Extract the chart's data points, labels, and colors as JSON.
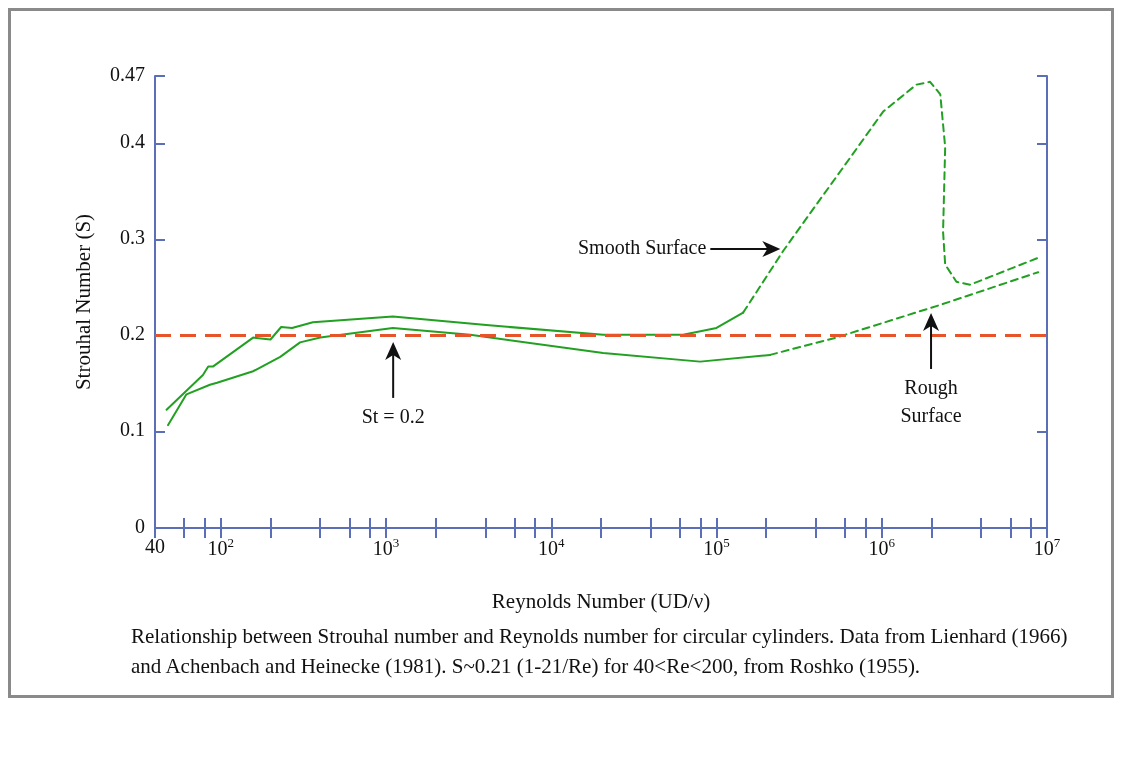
{
  "chart_data": {
    "type": "line",
    "xlabel": "Reynolds Number (UD/ν)",
    "ylabel": "Strouhal Number (S)",
    "log": "x",
    "marker": "none",
    "grid": false,
    "xlim": [
      40,
      10000000
    ],
    "ylim": [
      0,
      0.47
    ],
    "xticks": [
      {
        "value": 40,
        "label": "40"
      },
      {
        "value": 60,
        "label": null
      },
      {
        "value": 80,
        "label": null
      },
      {
        "value": 100,
        "label": "10$^{2}$"
      },
      {
        "value": 200,
        "label": null
      },
      {
        "value": 400,
        "label": null
      },
      {
        "value": 600,
        "label": null
      },
      {
        "value": 800,
        "label": null
      },
      {
        "value": 1000,
        "label": "10$^{3}$"
      },
      {
        "value": 2000,
        "label": null
      },
      {
        "value": 4000,
        "label": null
      },
      {
        "value": 6000,
        "label": null
      },
      {
        "value": 8000,
        "label": null
      },
      {
        "value": 10000,
        "label": "10$^{4}$"
      },
      {
        "value": 20000,
        "label": null
      },
      {
        "value": 40000,
        "label": null
      },
      {
        "value": 60000,
        "label": null
      },
      {
        "value": 80000,
        "label": null
      },
      {
        "value": 100000,
        "label": "10$^{5}$"
      },
      {
        "value": 200000,
        "label": null
      },
      {
        "value": 400000,
        "label": null
      },
      {
        "value": 600000,
        "label": null
      },
      {
        "value": 800000,
        "label": null
      },
      {
        "value": 1000000,
        "label": "10$^{6}$"
      },
      {
        "value": 2000000,
        "label": null
      },
      {
        "value": 4000000,
        "label": null
      },
      {
        "value": 6000000,
        "label": null
      },
      {
        "value": 8000000,
        "label": null
      },
      {
        "value": 10000000,
        "label": "10$^{7}$"
      }
    ],
    "yticks": [
      0,
      0.1,
      0.2,
      0.3,
      0.4,
      0.47
    ],
    "series": [
      {
        "color": "#22a022",
        "line_style": "solid",
        "x": [
          47,
          78,
          84,
          90,
          157,
          200,
          232,
          270,
          361,
          1100,
          4040,
          20600,
          62800,
          100000,
          145000
        ],
        "values": [
          0.123,
          0.159,
          0.168,
          0.168,
          0.198,
          0.196,
          0.209,
          0.208,
          0.214,
          0.22,
          0.211,
          0.201,
          0.201,
          0.208,
          0.224
        ]
      },
      {
        "color": "#22a022",
        "line_style": "dashed",
        "x": [
          145000,
          253000,
          401000,
          644000,
          1020000,
          1620000,
          1960000,
          2260000,
          2420000,
          2350000,
          2420000,
          2830000,
          3430000,
          8850000
        ],
        "values": [
          0.224,
          0.288,
          0.336,
          0.385,
          0.433,
          0.461,
          0.464,
          0.451,
          0.396,
          0.308,
          0.274,
          0.256,
          0.253,
          0.281
        ]
      },
      {
        "color": "#22a022",
        "line_style": "solid",
        "x": [
          48,
          62,
          86,
          95,
          157,
          229,
          302,
          400,
          1100,
          3230,
          20600,
          79600,
          211000
        ],
        "values": [
          0.107,
          0.139,
          0.149,
          0.151,
          0.163,
          0.178,
          0.193,
          0.198,
          0.208,
          0.201,
          0.182,
          0.173,
          0.18
        ]
      },
      {
        "color": "#22a022",
        "line_style": "dashed",
        "x": [
          211000,
          530000,
          2260000,
          8850000
        ],
        "values": [
          0.18,
          0.198,
          0.232,
          0.266
        ]
      }
    ],
    "ref_lines": [
      {
        "axis": "y",
        "value": 0.2,
        "color": "#e8542a",
        "line_style": "dashed"
      }
    ],
    "annotations": [
      "Smooth Surface",
      "St = 0.2",
      "Rough Surface",
      "Relationship between Strouhal number and Reynolds number for circular cylinders. Data from Lienhard (1966) and Achenbach and Heinecke (1981). S~0.21 (1-21/Re) for 40<Re<200, from Roshko (1955)."
    ]
  }
}
